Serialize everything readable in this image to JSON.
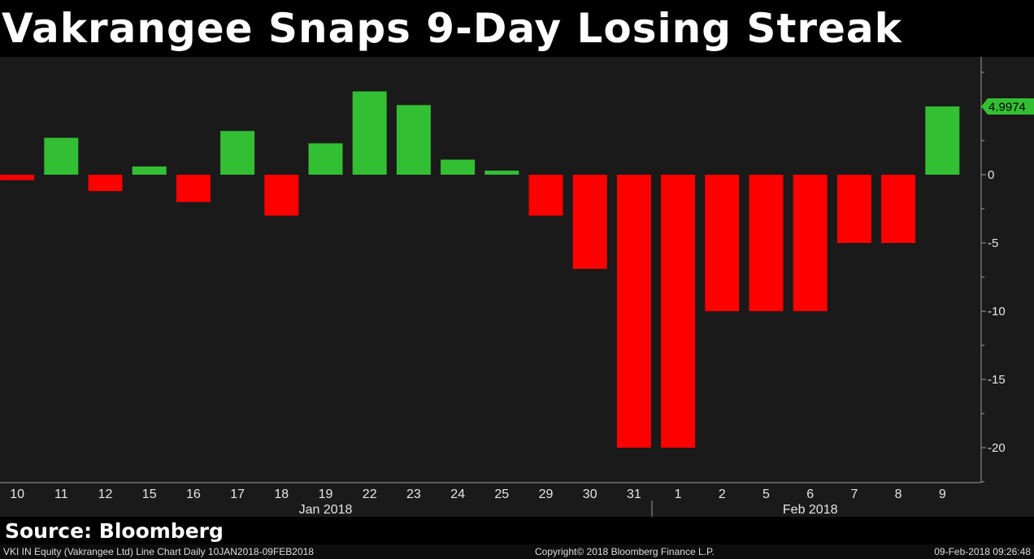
{
  "header": {
    "title": "Vakrangee Snaps 9-Day Losing Streak"
  },
  "source": {
    "label": "Source: Bloomberg"
  },
  "footer": {
    "left": "VKI IN Equity (Vakrangee Ltd) Line Chart  Daily 10JAN2018-09FEB2018",
    "center": "Copyright© 2018 Bloomberg Finance L.P.",
    "right": "09-Feb-2018 09:26:48"
  },
  "colors": {
    "positive": "#33bf33",
    "negative": "#ff0000",
    "background": "#1a1a1a"
  },
  "chart_data": {
    "type": "bar",
    "categories": [
      "10",
      "11",
      "12",
      "15",
      "16",
      "17",
      "18",
      "19",
      "22",
      "23",
      "24",
      "25",
      "29",
      "30",
      "31",
      "1",
      "2",
      "5",
      "6",
      "7",
      "8",
      "9"
    ],
    "values": [
      -0.4,
      2.7,
      -1.2,
      0.6,
      -2.0,
      3.2,
      -3.0,
      2.3,
      6.1,
      5.1,
      1.1,
      0.3,
      -3.0,
      -6.9,
      -20.0,
      -20.0,
      -10.0,
      -10.0,
      -10.0,
      -5.0,
      -5.0,
      4.9974
    ],
    "month_labels": [
      {
        "label": "Jan 2018",
        "from": 0,
        "to": 14
      },
      {
        "label": "Feb 2018",
        "from": 15,
        "to": 21
      }
    ],
    "yticks": [
      0,
      -5,
      -10,
      -15,
      -20
    ],
    "ylim": [
      -22.5,
      7.5
    ],
    "last_value_label": "4.9974",
    "title": "",
    "xlabel": "",
    "ylabel": "",
    "grid": false
  }
}
